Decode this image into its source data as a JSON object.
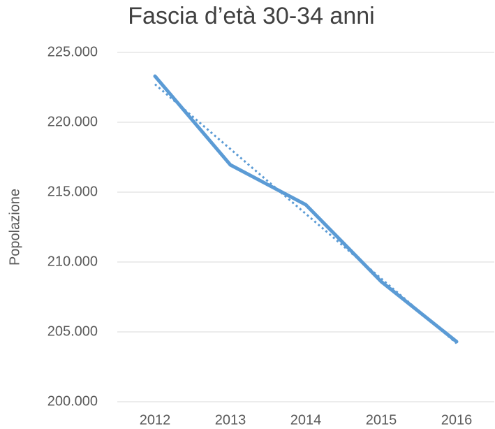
{
  "chart_data": {
    "type": "line",
    "title": "Fascia d’età 30-34 anni",
    "ylabel": "Popolazione",
    "categories": [
      "2012",
      "2013",
      "2014",
      "2015",
      "2016"
    ],
    "series": [
      {
        "color": "#5b9bd5",
        "values": [
          223300,
          216950,
          214100,
          208600,
          204300
        ]
      }
    ],
    "trendline": {
      "color": "#5b9bd5",
      "style": "dotted",
      "values": [
        222720,
        218085,
        213450,
        208815,
        204180
      ]
    },
    "ylim": [
      200000,
      225000
    ],
    "yticks": [
      {
        "value": 200000,
        "label": "200.000"
      },
      {
        "value": 205000,
        "label": "205.000"
      },
      {
        "value": 210000,
        "label": "210.000"
      },
      {
        "value": 215000,
        "label": "215.000"
      },
      {
        "value": 220000,
        "label": "220.000"
      },
      {
        "value": 225000,
        "label": "225.000"
      }
    ],
    "grid": true
  }
}
